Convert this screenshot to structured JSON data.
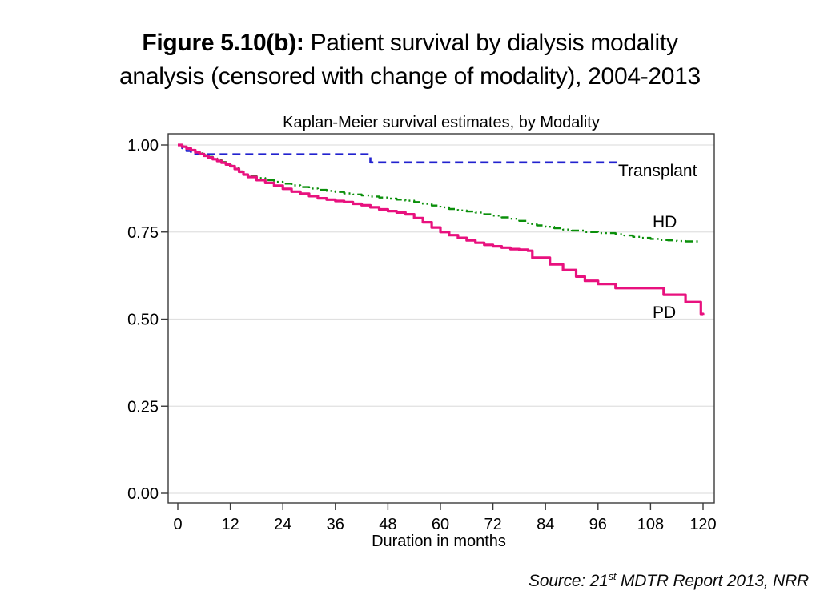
{
  "title": {
    "bold": "Figure 5.10(b):",
    "rest": " Patient survival by dialysis modality",
    "line2": "analysis (censored with change of modality), 2004-2013"
  },
  "source": {
    "prefix": "Source: 21",
    "sup": "st",
    "suffix": " MDTR Report 2013, NRR"
  },
  "chart_data": {
    "type": "line",
    "subtype": "kaplan-meier-step",
    "title": "Kaplan-Meier survival estimates, by Modality",
    "xlabel": "Duration in months",
    "ylabel": "",
    "xlim": [
      0,
      120
    ],
    "ylim": [
      0.0,
      1.0
    ],
    "grid": "horizontal",
    "legend_position": "inline-labels-right",
    "xticks": [
      {
        "v": 0,
        "label": "0"
      },
      {
        "v": 12,
        "label": "12"
      },
      {
        "v": 24,
        "label": "24"
      },
      {
        "v": 36,
        "label": "36"
      },
      {
        "v": 48,
        "label": "48"
      },
      {
        "v": 60,
        "label": "60"
      },
      {
        "v": 72,
        "label": "72"
      },
      {
        "v": 84,
        "label": "84"
      },
      {
        "v": 96,
        "label": "96"
      },
      {
        "v": 108,
        "label": "108"
      },
      {
        "v": 120,
        "label": "120"
      }
    ],
    "yticks": [
      {
        "v": 1.0,
        "label": "1.00"
      },
      {
        "v": 0.75,
        "label": "0.75"
      },
      {
        "v": 0.5,
        "label": "0.50"
      },
      {
        "v": 0.25,
        "label": "0.25"
      },
      {
        "v": 0.0,
        "label": "0.00"
      }
    ],
    "series": [
      {
        "name": "Transplant",
        "label": "Transplant",
        "color": "#2222cf",
        "dash": "dashed",
        "points": [
          [
            0,
            1.0
          ],
          [
            1,
            0.991
          ],
          [
            2,
            0.983
          ],
          [
            3,
            0.977
          ],
          [
            4,
            0.973
          ],
          [
            44,
            0.95
          ],
          [
            101,
            0.95
          ]
        ]
      },
      {
        "name": "HD",
        "label": "HD",
        "color": "#0a8f0a",
        "dash": "dash-dot-dot",
        "points": [
          [
            0,
            1.0
          ],
          [
            1,
            0.996
          ],
          [
            2,
            0.99
          ],
          [
            3,
            0.985
          ],
          [
            4,
            0.98
          ],
          [
            5,
            0.976
          ],
          [
            6,
            0.971
          ],
          [
            7,
            0.966
          ],
          [
            8,
            0.961
          ],
          [
            9,
            0.956
          ],
          [
            10,
            0.951
          ],
          [
            11,
            0.946
          ],
          [
            12,
            0.941
          ],
          [
            13,
            0.933
          ],
          [
            14,
            0.924
          ],
          [
            15,
            0.915
          ],
          [
            16,
            0.911
          ],
          [
            18,
            0.905
          ],
          [
            20,
            0.899
          ],
          [
            22,
            0.894
          ],
          [
            24,
            0.889
          ],
          [
            26,
            0.884
          ],
          [
            28,
            0.879
          ],
          [
            30,
            0.875
          ],
          [
            32,
            0.871
          ],
          [
            34,
            0.868
          ],
          [
            36,
            0.865
          ],
          [
            38,
            0.861
          ],
          [
            40,
            0.858
          ],
          [
            42,
            0.855
          ],
          [
            44,
            0.852
          ],
          [
            46,
            0.849
          ],
          [
            48,
            0.846
          ],
          [
            50,
            0.843
          ],
          [
            52,
            0.84
          ],
          [
            54,
            0.836
          ],
          [
            56,
            0.831
          ],
          [
            58,
            0.826
          ],
          [
            60,
            0.821
          ],
          [
            62,
            0.816
          ],
          [
            64,
            0.812
          ],
          [
            66,
            0.809
          ],
          [
            68,
            0.806
          ],
          [
            70,
            0.801
          ],
          [
            72,
            0.797
          ],
          [
            74,
            0.792
          ],
          [
            76,
            0.788
          ],
          [
            78,
            0.782
          ],
          [
            80,
            0.773
          ],
          [
            82,
            0.769
          ],
          [
            84,
            0.765
          ],
          [
            86,
            0.761
          ],
          [
            88,
            0.757
          ],
          [
            90,
            0.754
          ],
          [
            93,
            0.75
          ],
          [
            96,
            0.747
          ],
          [
            100,
            0.744
          ],
          [
            102,
            0.74
          ],
          [
            104,
            0.736
          ],
          [
            106,
            0.733
          ],
          [
            108,
            0.73
          ],
          [
            110,
            0.727
          ],
          [
            112,
            0.726
          ],
          [
            114,
            0.724
          ],
          [
            116,
            0.723
          ],
          [
            119,
            0.721
          ]
        ]
      },
      {
        "name": "PD",
        "label": "PD",
        "color": "#e8117e",
        "dash": "solid",
        "points": [
          [
            0,
            1.0
          ],
          [
            1,
            0.995
          ],
          [
            2,
            0.99
          ],
          [
            3,
            0.985
          ],
          [
            4,
            0.979
          ],
          [
            5,
            0.974
          ],
          [
            6,
            0.969
          ],
          [
            7,
            0.964
          ],
          [
            8,
            0.959
          ],
          [
            9,
            0.954
          ],
          [
            10,
            0.949
          ],
          [
            11,
            0.944
          ],
          [
            12,
            0.939
          ],
          [
            13,
            0.931
          ],
          [
            14,
            0.923
          ],
          [
            15,
            0.915
          ],
          [
            16,
            0.908
          ],
          [
            18,
            0.899
          ],
          [
            20,
            0.891
          ],
          [
            22,
            0.883
          ],
          [
            24,
            0.874
          ],
          [
            26,
            0.866
          ],
          [
            28,
            0.86
          ],
          [
            30,
            0.853
          ],
          [
            32,
            0.847
          ],
          [
            34,
            0.843
          ],
          [
            36,
            0.839
          ],
          [
            38,
            0.836
          ],
          [
            40,
            0.831
          ],
          [
            42,
            0.827
          ],
          [
            44,
            0.821
          ],
          [
            46,
            0.815
          ],
          [
            48,
            0.81
          ],
          [
            50,
            0.806
          ],
          [
            52,
            0.801
          ],
          [
            54,
            0.79
          ],
          [
            56,
            0.778
          ],
          [
            58,
            0.763
          ],
          [
            60,
            0.75
          ],
          [
            62,
            0.741
          ],
          [
            64,
            0.733
          ],
          [
            66,
            0.726
          ],
          [
            68,
            0.719
          ],
          [
            70,
            0.713
          ],
          [
            72,
            0.709
          ],
          [
            74,
            0.705
          ],
          [
            76,
            0.701
          ],
          [
            78,
            0.699
          ],
          [
            80,
            0.696
          ],
          [
            81,
            0.676
          ],
          [
            85,
            0.657
          ],
          [
            88,
            0.641
          ],
          [
            91,
            0.622
          ],
          [
            93,
            0.61
          ],
          [
            96,
            0.601
          ],
          [
            100,
            0.589
          ],
          [
            111,
            0.57
          ],
          [
            116,
            0.549
          ],
          [
            119.5,
            0.515
          ],
          [
            120,
            0.512
          ]
        ]
      }
    ]
  }
}
